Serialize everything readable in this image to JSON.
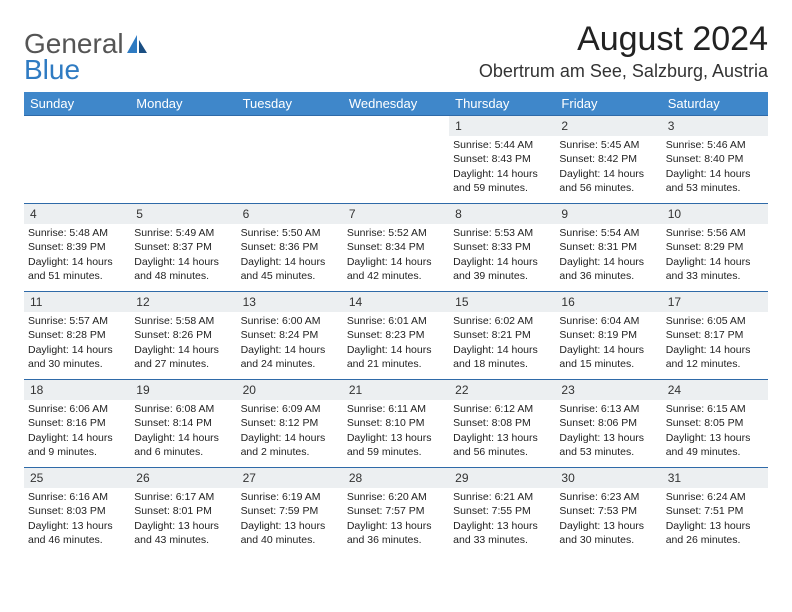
{
  "logo": {
    "text1": "General",
    "text2": "Blue",
    "color_general": "#555555",
    "color_blue": "#2f7bc2"
  },
  "title": "August 2024",
  "location": "Obertrum am See, Salzburg, Austria",
  "colors": {
    "header_bg": "#3f87ca",
    "header_text": "#ffffff",
    "cell_border": "#2f6aa8",
    "daynum_bg": "#eceff1",
    "page_bg": "#ffffff"
  },
  "dow": [
    "Sunday",
    "Monday",
    "Tuesday",
    "Wednesday",
    "Thursday",
    "Friday",
    "Saturday"
  ],
  "weeks": [
    [
      {
        "empty": true
      },
      {
        "empty": true
      },
      {
        "empty": true
      },
      {
        "empty": true
      },
      {
        "n": "1",
        "sr": "Sunrise: 5:44 AM",
        "ss": "Sunset: 8:43 PM",
        "d1": "Daylight: 14 hours",
        "d2": "and 59 minutes."
      },
      {
        "n": "2",
        "sr": "Sunrise: 5:45 AM",
        "ss": "Sunset: 8:42 PM",
        "d1": "Daylight: 14 hours",
        "d2": "and 56 minutes."
      },
      {
        "n": "3",
        "sr": "Sunrise: 5:46 AM",
        "ss": "Sunset: 8:40 PM",
        "d1": "Daylight: 14 hours",
        "d2": "and 53 minutes."
      }
    ],
    [
      {
        "n": "4",
        "sr": "Sunrise: 5:48 AM",
        "ss": "Sunset: 8:39 PM",
        "d1": "Daylight: 14 hours",
        "d2": "and 51 minutes."
      },
      {
        "n": "5",
        "sr": "Sunrise: 5:49 AM",
        "ss": "Sunset: 8:37 PM",
        "d1": "Daylight: 14 hours",
        "d2": "and 48 minutes."
      },
      {
        "n": "6",
        "sr": "Sunrise: 5:50 AM",
        "ss": "Sunset: 8:36 PM",
        "d1": "Daylight: 14 hours",
        "d2": "and 45 minutes."
      },
      {
        "n": "7",
        "sr": "Sunrise: 5:52 AM",
        "ss": "Sunset: 8:34 PM",
        "d1": "Daylight: 14 hours",
        "d2": "and 42 minutes."
      },
      {
        "n": "8",
        "sr": "Sunrise: 5:53 AM",
        "ss": "Sunset: 8:33 PM",
        "d1": "Daylight: 14 hours",
        "d2": "and 39 minutes."
      },
      {
        "n": "9",
        "sr": "Sunrise: 5:54 AM",
        "ss": "Sunset: 8:31 PM",
        "d1": "Daylight: 14 hours",
        "d2": "and 36 minutes."
      },
      {
        "n": "10",
        "sr": "Sunrise: 5:56 AM",
        "ss": "Sunset: 8:29 PM",
        "d1": "Daylight: 14 hours",
        "d2": "and 33 minutes."
      }
    ],
    [
      {
        "n": "11",
        "sr": "Sunrise: 5:57 AM",
        "ss": "Sunset: 8:28 PM",
        "d1": "Daylight: 14 hours",
        "d2": "and 30 minutes."
      },
      {
        "n": "12",
        "sr": "Sunrise: 5:58 AM",
        "ss": "Sunset: 8:26 PM",
        "d1": "Daylight: 14 hours",
        "d2": "and 27 minutes."
      },
      {
        "n": "13",
        "sr": "Sunrise: 6:00 AM",
        "ss": "Sunset: 8:24 PM",
        "d1": "Daylight: 14 hours",
        "d2": "and 24 minutes."
      },
      {
        "n": "14",
        "sr": "Sunrise: 6:01 AM",
        "ss": "Sunset: 8:23 PM",
        "d1": "Daylight: 14 hours",
        "d2": "and 21 minutes."
      },
      {
        "n": "15",
        "sr": "Sunrise: 6:02 AM",
        "ss": "Sunset: 8:21 PM",
        "d1": "Daylight: 14 hours",
        "d2": "and 18 minutes."
      },
      {
        "n": "16",
        "sr": "Sunrise: 6:04 AM",
        "ss": "Sunset: 8:19 PM",
        "d1": "Daylight: 14 hours",
        "d2": "and 15 minutes."
      },
      {
        "n": "17",
        "sr": "Sunrise: 6:05 AM",
        "ss": "Sunset: 8:17 PM",
        "d1": "Daylight: 14 hours",
        "d2": "and 12 minutes."
      }
    ],
    [
      {
        "n": "18",
        "sr": "Sunrise: 6:06 AM",
        "ss": "Sunset: 8:16 PM",
        "d1": "Daylight: 14 hours",
        "d2": "and 9 minutes."
      },
      {
        "n": "19",
        "sr": "Sunrise: 6:08 AM",
        "ss": "Sunset: 8:14 PM",
        "d1": "Daylight: 14 hours",
        "d2": "and 6 minutes."
      },
      {
        "n": "20",
        "sr": "Sunrise: 6:09 AM",
        "ss": "Sunset: 8:12 PM",
        "d1": "Daylight: 14 hours",
        "d2": "and 2 minutes."
      },
      {
        "n": "21",
        "sr": "Sunrise: 6:11 AM",
        "ss": "Sunset: 8:10 PM",
        "d1": "Daylight: 13 hours",
        "d2": "and 59 minutes."
      },
      {
        "n": "22",
        "sr": "Sunrise: 6:12 AM",
        "ss": "Sunset: 8:08 PM",
        "d1": "Daylight: 13 hours",
        "d2": "and 56 minutes."
      },
      {
        "n": "23",
        "sr": "Sunrise: 6:13 AM",
        "ss": "Sunset: 8:06 PM",
        "d1": "Daylight: 13 hours",
        "d2": "and 53 minutes."
      },
      {
        "n": "24",
        "sr": "Sunrise: 6:15 AM",
        "ss": "Sunset: 8:05 PM",
        "d1": "Daylight: 13 hours",
        "d2": "and 49 minutes."
      }
    ],
    [
      {
        "n": "25",
        "sr": "Sunrise: 6:16 AM",
        "ss": "Sunset: 8:03 PM",
        "d1": "Daylight: 13 hours",
        "d2": "and 46 minutes."
      },
      {
        "n": "26",
        "sr": "Sunrise: 6:17 AM",
        "ss": "Sunset: 8:01 PM",
        "d1": "Daylight: 13 hours",
        "d2": "and 43 minutes."
      },
      {
        "n": "27",
        "sr": "Sunrise: 6:19 AM",
        "ss": "Sunset: 7:59 PM",
        "d1": "Daylight: 13 hours",
        "d2": "and 40 minutes."
      },
      {
        "n": "28",
        "sr": "Sunrise: 6:20 AM",
        "ss": "Sunset: 7:57 PM",
        "d1": "Daylight: 13 hours",
        "d2": "and 36 minutes."
      },
      {
        "n": "29",
        "sr": "Sunrise: 6:21 AM",
        "ss": "Sunset: 7:55 PM",
        "d1": "Daylight: 13 hours",
        "d2": "and 33 minutes."
      },
      {
        "n": "30",
        "sr": "Sunrise: 6:23 AM",
        "ss": "Sunset: 7:53 PM",
        "d1": "Daylight: 13 hours",
        "d2": "and 30 minutes."
      },
      {
        "n": "31",
        "sr": "Sunrise: 6:24 AM",
        "ss": "Sunset: 7:51 PM",
        "d1": "Daylight: 13 hours",
        "d2": "and 26 minutes."
      }
    ]
  ]
}
